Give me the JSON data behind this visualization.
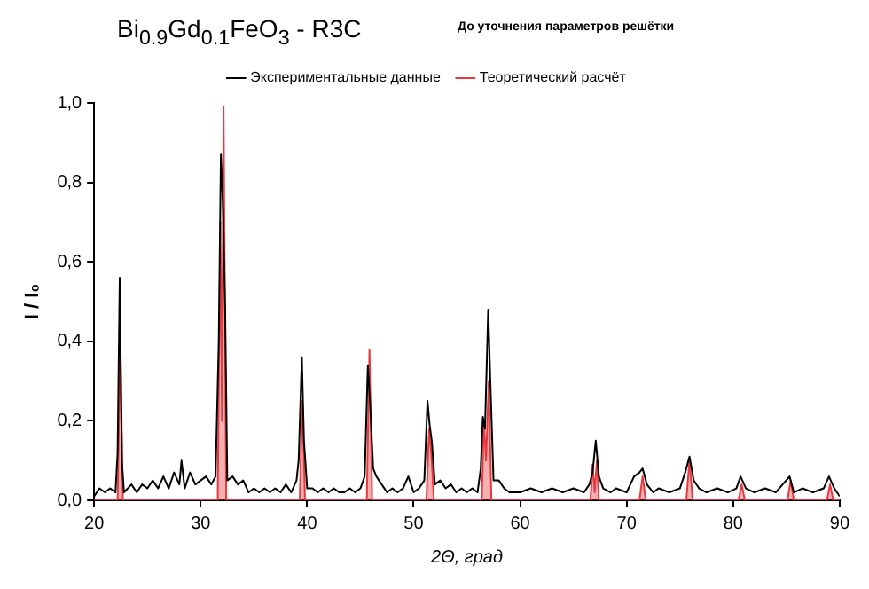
{
  "chart_data": {
    "type": "line",
    "title": "Bi$_{0.9}$Gd$_{0.1}$FeO$_{3}$ - R3C",
    "subtitle": "До уточнения параметров решётки",
    "xlabel": "2Θ, град",
    "ylabel": "I / I₀",
    "xlim": [
      20,
      90
    ],
    "xticks": [
      20,
      30,
      40,
      50,
      60,
      70,
      80,
      90
    ],
    "ylim": [
      0,
      1
    ],
    "yticks": [
      {
        "value": 0,
        "label": "0,0"
      },
      {
        "value": 0.2,
        "label": "0,2"
      },
      {
        "value": 0.4,
        "label": "0,4"
      },
      {
        "value": 0.6,
        "label": "0,6"
      },
      {
        "value": 0.8,
        "label": "0,8"
      },
      {
        "value": 1,
        "label": "1,0"
      }
    ],
    "grid": false,
    "legend": "top",
    "marker": "none",
    "line_style": "solid",
    "series": [
      {
        "name": "Экспериментальные данные",
        "color": "#000000",
        "x": [
          20,
          20.5,
          21,
          21.5,
          22,
          22.2,
          22.4,
          22.6,
          22.8,
          23.5,
          24,
          24.5,
          25,
          25.5,
          26,
          26.5,
          27,
          27.5,
          28,
          28.2,
          28.5,
          29,
          29.5,
          30,
          30.5,
          31,
          31.4,
          31.7,
          31.9,
          32.1,
          32.3,
          32.5,
          33,
          33.5,
          34,
          34.5,
          35,
          35.5,
          36,
          36.5,
          37,
          37.5,
          38,
          38.5,
          39,
          39.2,
          39.5,
          39.7,
          40,
          40.5,
          41,
          41.5,
          42,
          42.5,
          43,
          43.5,
          44,
          44.5,
          45,
          45.4,
          45.7,
          45.9,
          46.2,
          46.5,
          47,
          47.5,
          48,
          48.5,
          49,
          49.5,
          50,
          50.5,
          51,
          51.3,
          51.5,
          51.7,
          52,
          52.5,
          53,
          53.5,
          54,
          54.5,
          55,
          55.5,
          56,
          56.3,
          56.5,
          56.7,
          57,
          57.2,
          57.5,
          58,
          58.5,
          59,
          60,
          61,
          62,
          63,
          64,
          65,
          66,
          66.5,
          66.8,
          67.1,
          67.4,
          67.8,
          68.5,
          69,
          70,
          70.7,
          71.2,
          71.5,
          71.9,
          72.5,
          73,
          74,
          75,
          75.5,
          75.9,
          76.3,
          76.8,
          77.5,
          78.5,
          79.5,
          80.3,
          80.7,
          81.2,
          82,
          83,
          84,
          85.3,
          85.7,
          86.5,
          87.5,
          88.5,
          89,
          89.5,
          90
        ],
        "values": [
          0.01,
          0.03,
          0.02,
          0.03,
          0.02,
          0.12,
          0.56,
          0.1,
          0.02,
          0.04,
          0.02,
          0.04,
          0.03,
          0.05,
          0.03,
          0.06,
          0.03,
          0.07,
          0.04,
          0.1,
          0.03,
          0.07,
          0.04,
          0.05,
          0.06,
          0.04,
          0.06,
          0.4,
          0.87,
          0.74,
          0.48,
          0.05,
          0.06,
          0.04,
          0.05,
          0.02,
          0.03,
          0.02,
          0.03,
          0.02,
          0.03,
          0.02,
          0.04,
          0.02,
          0.05,
          0.1,
          0.36,
          0.15,
          0.03,
          0.03,
          0.02,
          0.03,
          0.02,
          0.03,
          0.02,
          0.02,
          0.03,
          0.02,
          0.03,
          0.06,
          0.34,
          0.25,
          0.08,
          0.06,
          0.04,
          0.02,
          0.03,
          0.02,
          0.03,
          0.06,
          0.02,
          0.03,
          0.05,
          0.25,
          0.19,
          0.15,
          0.04,
          0.05,
          0.03,
          0.04,
          0.02,
          0.03,
          0.02,
          0.03,
          0.02,
          0.08,
          0.21,
          0.18,
          0.48,
          0.3,
          0.05,
          0.05,
          0.03,
          0.02,
          0.02,
          0.03,
          0.02,
          0.03,
          0.02,
          0.03,
          0.02,
          0.04,
          0.07,
          0.15,
          0.06,
          0.03,
          0.02,
          0.03,
          0.02,
          0.06,
          0.07,
          0.08,
          0.04,
          0.02,
          0.03,
          0.02,
          0.03,
          0.07,
          0.11,
          0.05,
          0.03,
          0.02,
          0.03,
          0.02,
          0.03,
          0.06,
          0.03,
          0.02,
          0.03,
          0.02,
          0.06,
          0.02,
          0.03,
          0.02,
          0.03,
          0.06,
          0.03,
          0.01
        ]
      },
      {
        "name": "Теоретический расчёт",
        "type": "area",
        "color": "#e8393f",
        "x": [
          20,
          22.2,
          22.45,
          22.7,
          31.6,
          31.85,
          32,
          32.15,
          32.4,
          39.3,
          39.55,
          39.8,
          45.6,
          45.85,
          46.1,
          51.2,
          51.45,
          51.7,
          51.9,
          56.4,
          56.6,
          56.8,
          57.05,
          57.3,
          66.6,
          66.8,
          67,
          67.2,
          67.4,
          71.2,
          71.5,
          71.8,
          75.6,
          75.9,
          76.2,
          80.5,
          80.8,
          81.1,
          85.1,
          85.4,
          85.7,
          88.8,
          89.1,
          89.4,
          90
        ],
        "values": [
          0,
          0,
          0.4,
          0,
          0,
          0.7,
          0.2,
          0.99,
          0,
          0,
          0.25,
          0,
          0,
          0.38,
          0,
          0,
          0.18,
          0.1,
          0,
          0,
          0.2,
          0.1,
          0.3,
          0,
          0,
          0.09,
          0.02,
          0.1,
          0,
          0,
          0.06,
          0,
          0,
          0.1,
          0,
          0,
          0.04,
          0,
          0,
          0.05,
          0,
          0,
          0.04,
          0,
          0
        ]
      }
    ]
  }
}
